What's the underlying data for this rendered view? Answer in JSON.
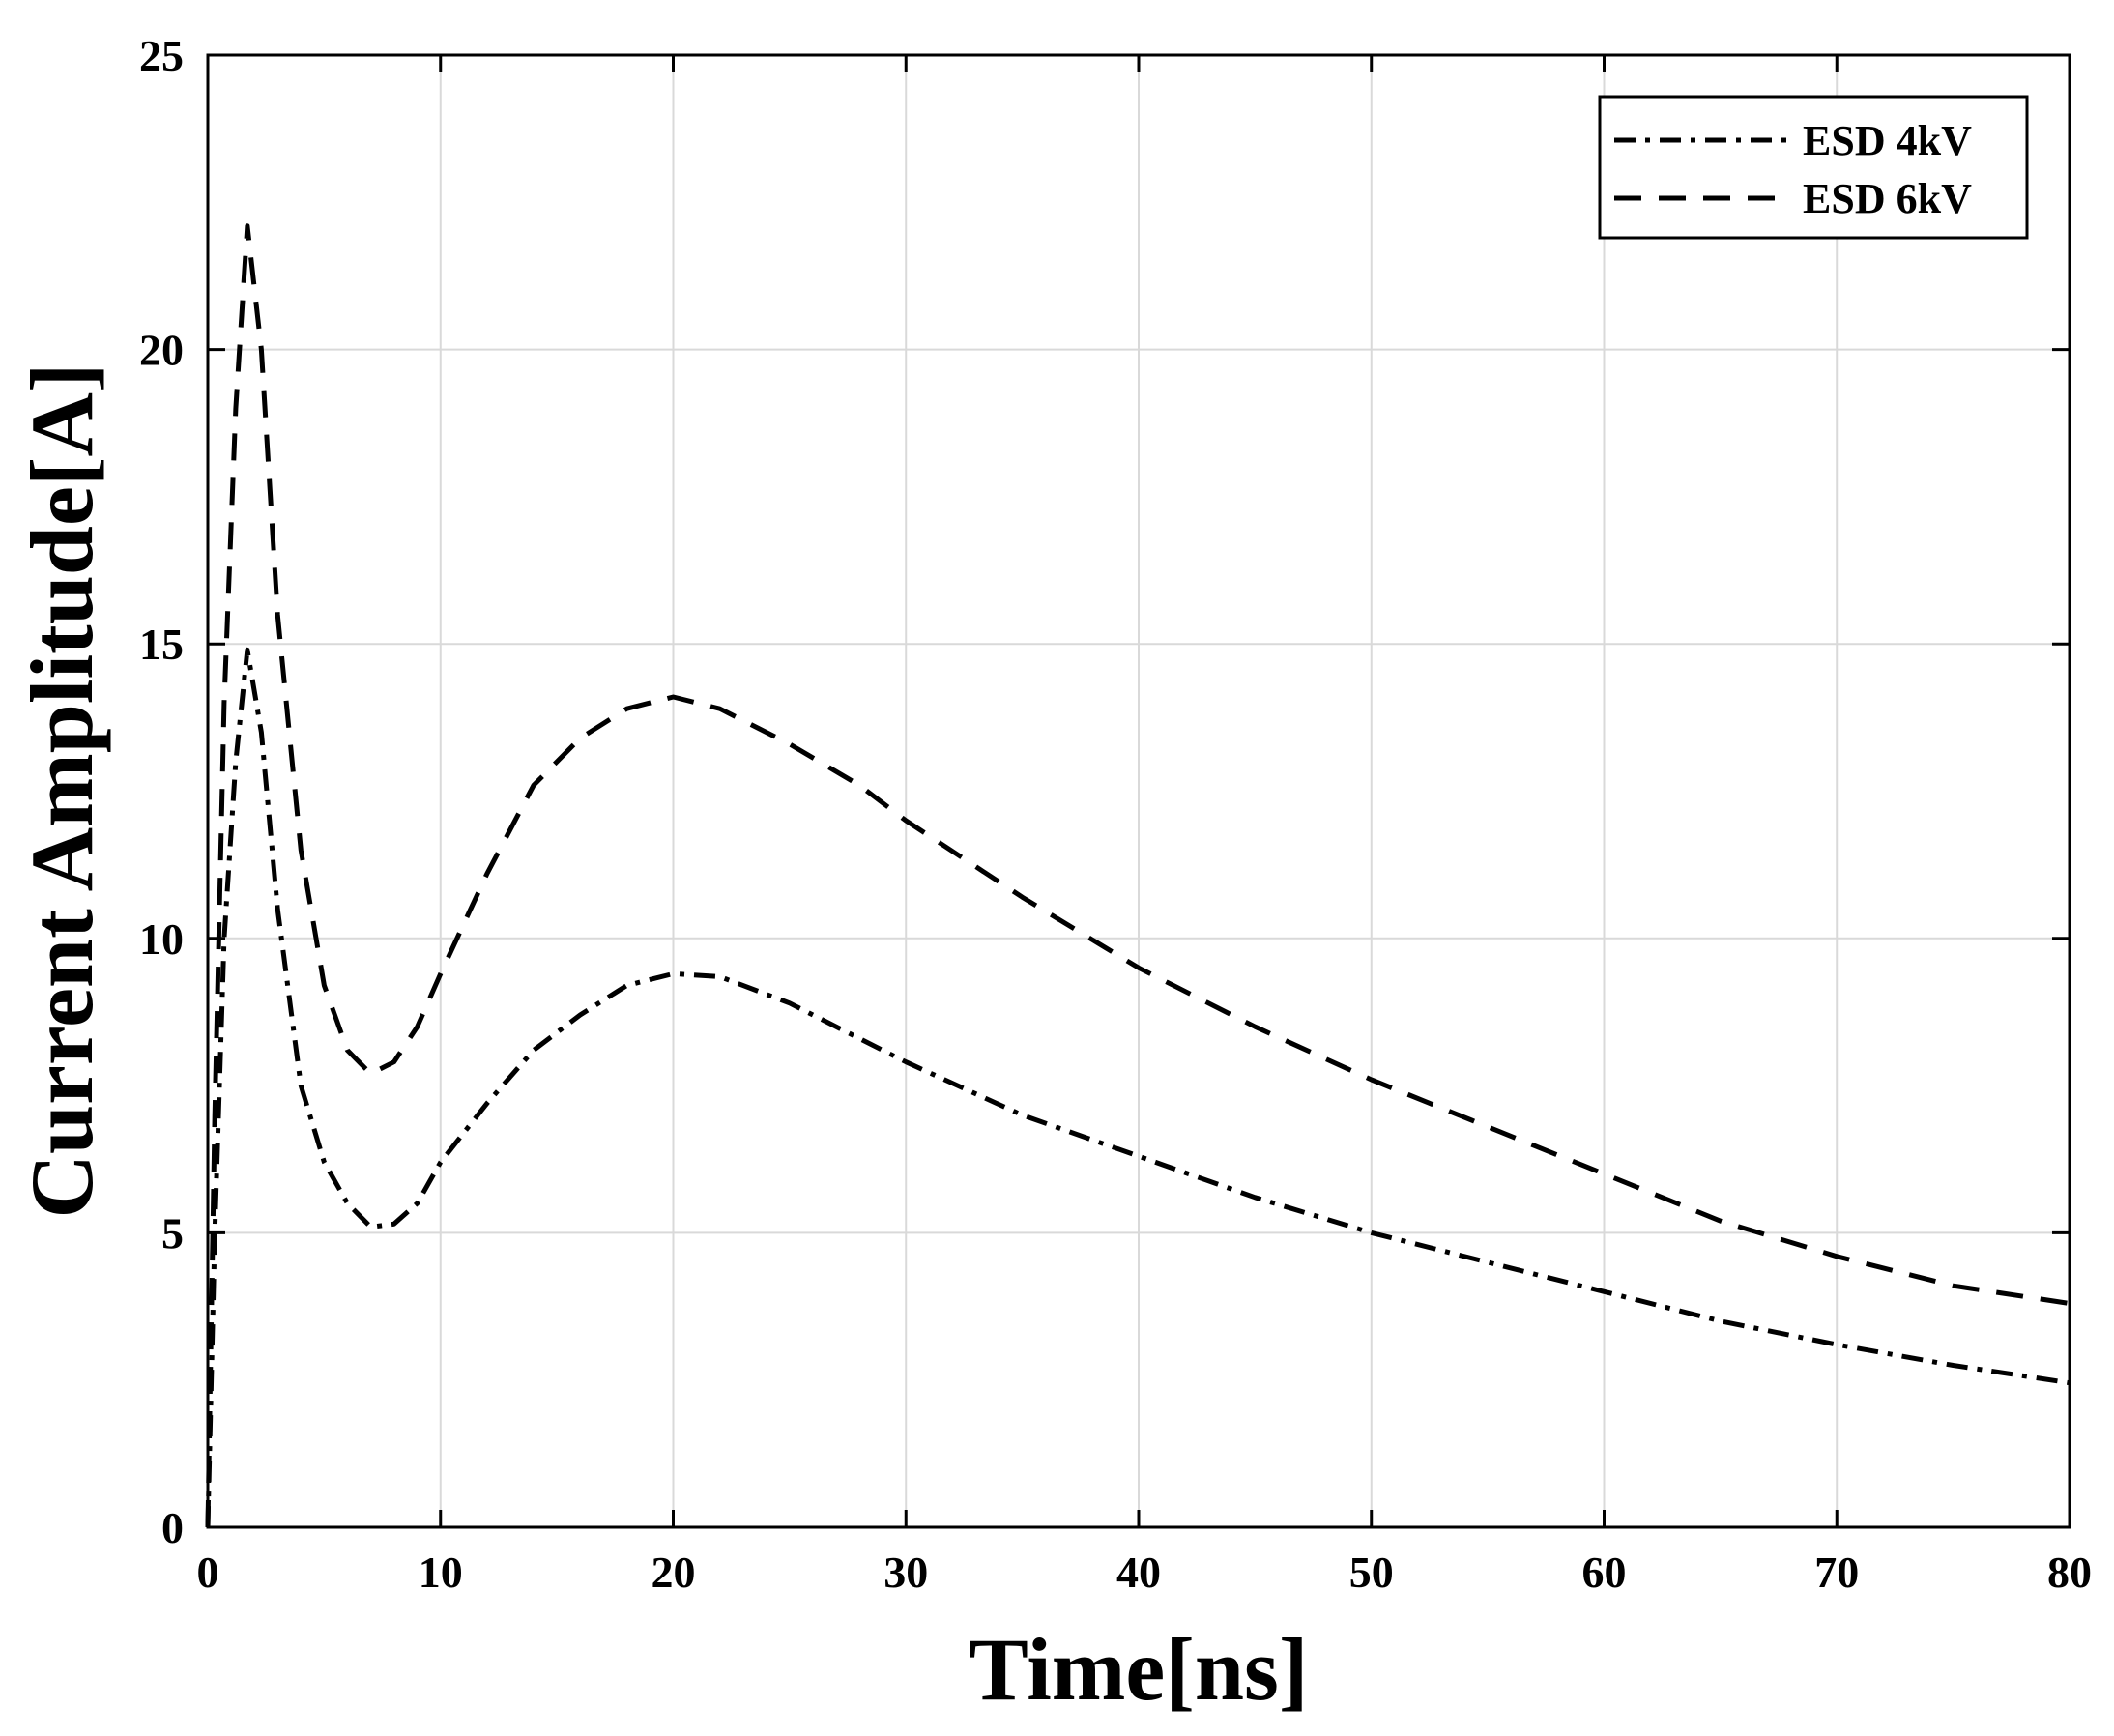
{
  "chart_data": {
    "type": "line",
    "xlabel": "Time[ns]",
    "ylabel": "Current Amplitude[A]",
    "xlim": [
      0,
      80
    ],
    "ylim": [
      0,
      25
    ],
    "xticks": [
      0,
      10,
      20,
      30,
      40,
      50,
      60,
      70,
      80
    ],
    "yticks": [
      0,
      5,
      10,
      15,
      20,
      25
    ],
    "grid": true,
    "legend_position": "top-right",
    "series": [
      {
        "name": "ESD 4kV",
        "line_style": "dash-dot",
        "color": "#000000",
        "x": [
          0,
          0.3,
          0.7,
          1.2,
          1.7,
          2.3,
          3,
          4,
          5,
          6,
          7,
          8,
          9,
          10,
          12,
          14,
          16,
          18,
          20,
          22,
          25,
          28,
          30,
          35,
          40,
          45,
          50,
          55,
          60,
          65,
          70,
          75,
          80
        ],
        "values": [
          0,
          5,
          10,
          13,
          14.9,
          13.5,
          10.5,
          7.5,
          6.2,
          5.5,
          5.1,
          5.15,
          5.5,
          6.2,
          7.2,
          8.1,
          8.7,
          9.2,
          9.4,
          9.35,
          8.9,
          8.3,
          7.9,
          7.0,
          6.3,
          5.6,
          5.0,
          4.5,
          4.0,
          3.5,
          3.1,
          2.75,
          2.45
        ]
      },
      {
        "name": "ESD 6kV",
        "line_style": "dashed",
        "color": "#000000",
        "x": [
          0,
          0.3,
          0.7,
          1.2,
          1.7,
          2.3,
          3,
          4,
          5,
          6,
          7,
          8,
          9,
          10,
          12,
          14,
          16,
          18,
          20,
          22,
          25,
          28,
          30,
          35,
          40,
          45,
          50,
          55,
          60,
          65,
          70,
          75,
          80
        ],
        "values": [
          0,
          7,
          14,
          19,
          22.1,
          20,
          15.5,
          11.5,
          9.2,
          8.1,
          7.7,
          7.9,
          8.5,
          9.4,
          11.1,
          12.6,
          13.4,
          13.9,
          14.1,
          13.9,
          13.3,
          12.6,
          12.0,
          10.7,
          9.5,
          8.5,
          7.6,
          6.8,
          6.0,
          5.2,
          4.6,
          4.1,
          3.8
        ]
      }
    ]
  }
}
